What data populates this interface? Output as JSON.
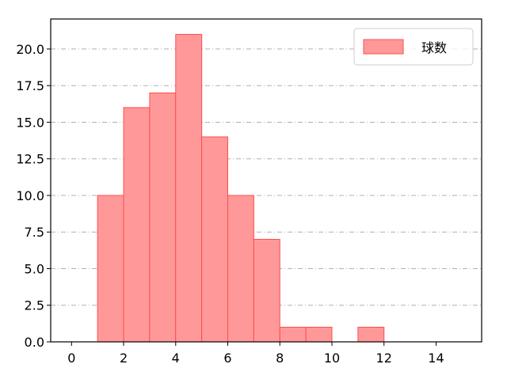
{
  "chart_data": {
    "type": "bar",
    "subtype": "histogram",
    "bins": [
      [
        1,
        2
      ],
      [
        2,
        3
      ],
      [
        3,
        4
      ],
      [
        4,
        5
      ],
      [
        5,
        6
      ],
      [
        6,
        7
      ],
      [
        7,
        8
      ],
      [
        8,
        9
      ],
      [
        9,
        10
      ],
      [
        11,
        12
      ]
    ],
    "values": [
      10,
      16,
      17,
      21,
      14,
      10,
      7,
      1,
      1,
      1
    ],
    "series": [
      {
        "name": "球数",
        "values": [
          10,
          16,
          17,
          21,
          14,
          10,
          7,
          1,
          1,
          1
        ]
      }
    ],
    "title": "",
    "xlabel": "",
    "ylabel": "",
    "xlim": [
      -0.8,
      15.75
    ],
    "ylim": [
      0,
      22.05
    ],
    "xticks": [
      "0",
      "2",
      "4",
      "6",
      "8",
      "10",
      "12",
      "14"
    ],
    "yticks": [
      "0.0",
      "2.5",
      "5.0",
      "7.5",
      "10.0",
      "12.5",
      "15.0",
      "17.5",
      "20.0"
    ],
    "grid": "y-dashdot",
    "legend": "top-right",
    "colors": {
      "fill": "#ff9999",
      "edge": "#ff4d4d",
      "grid": "#b0b0b0"
    }
  }
}
